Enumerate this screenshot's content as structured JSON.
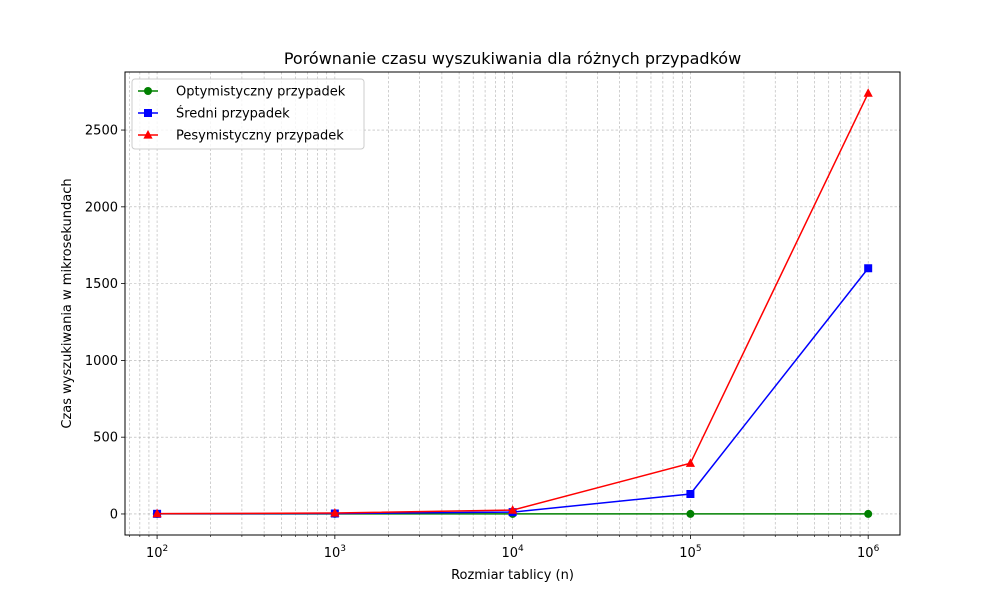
{
  "chart_data": {
    "type": "line",
    "title": "Porównanie czasu wyszukiwania dla różnych przypadków",
    "xlabel": "Rozmiar tablicy (n)",
    "ylabel": "Czas wyszukiwania w mikrosekundach",
    "x_scale": "log",
    "x": [
      100,
      1000,
      10000,
      100000,
      1000000
    ],
    "x_tick_labels": [
      {
        "base": "10",
        "exp": "2"
      },
      {
        "base": "10",
        "exp": "3"
      },
      {
        "base": "10",
        "exp": "4"
      },
      {
        "base": "10",
        "exp": "5"
      },
      {
        "base": "10",
        "exp": "6"
      }
    ],
    "y_ticks": [
      0,
      500,
      1000,
      1500,
      2000,
      2500
    ],
    "xlim": [
      66,
      1510000
    ],
    "ylim": [
      -137,
      2878
    ],
    "grid": true,
    "legend_position": "upper-left",
    "series": [
      {
        "name": "Optymistyczny przypadek",
        "color": "#008000",
        "marker": "circle",
        "values": [
          0.3,
          0.3,
          0.3,
          0.3,
          0.3
        ]
      },
      {
        "name": "Średni przypadek",
        "color": "#0000ff",
        "marker": "square",
        "values": [
          1,
          3,
          12,
          130,
          1600
        ]
      },
      {
        "name": "Pesymistyczny przypadek",
        "color": "#ff0000",
        "marker": "triangle",
        "values": [
          2,
          6,
          25,
          330,
          2740
        ]
      }
    ]
  }
}
